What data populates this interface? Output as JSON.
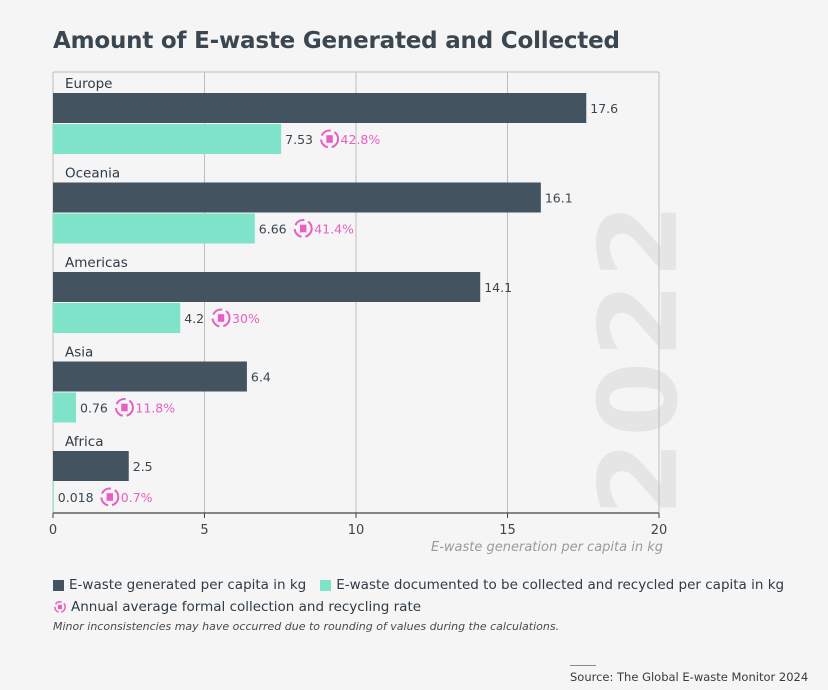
{
  "title": "Amount of E-waste Generated and Collected",
  "year_watermark": "2022",
  "legend": {
    "generated": "E-waste generated per capita in kg",
    "collected": "E-waste documented to be collected and recycled per capita in kg",
    "rate": "Annual average formal collection and recycling rate"
  },
  "note": "Minor inconsistencies may have occurred due to rounding of values during the calculations.",
  "source": "Source: The Global E-waste Monitor 2024",
  "colors": {
    "generated": "#435360",
    "collected": "#7fe3c9",
    "rate": "#e85fc4",
    "grid": "#bdbdbd"
  },
  "chart_data": {
    "type": "bar",
    "orientation": "horizontal",
    "categories": [
      "Europe",
      "Oceania",
      "Americas",
      "Asia",
      "Africa"
    ],
    "series": [
      {
        "name": "E-waste generated per capita in kg",
        "values": [
          17.6,
          16.1,
          14.1,
          6.4,
          2.5
        ],
        "labels": [
          "17.6",
          "16.1",
          "14.1",
          "6.4",
          "2.5"
        ]
      },
      {
        "name": "E-waste documented to be collected and recycled per capita in kg",
        "values": [
          7.53,
          6.66,
          4.2,
          0.76,
          0.018
        ],
        "labels": [
          "7.53",
          "6.66",
          "4.2",
          "0.76",
          "0.018"
        ]
      }
    ],
    "rates": {
      "name": "Annual average formal collection and recycling rate",
      "labels": [
        "42.8%",
        "41.4%",
        "30%",
        "11.8%",
        "0.7%"
      ]
    },
    "xlabel": "E-waste generation per capita in kg",
    "xlim": [
      0,
      20
    ],
    "xticks": [
      0,
      5,
      10,
      15,
      20
    ],
    "xtick_labels": [
      "0",
      "5",
      "10",
      "15",
      "20"
    ],
    "grid": true
  }
}
